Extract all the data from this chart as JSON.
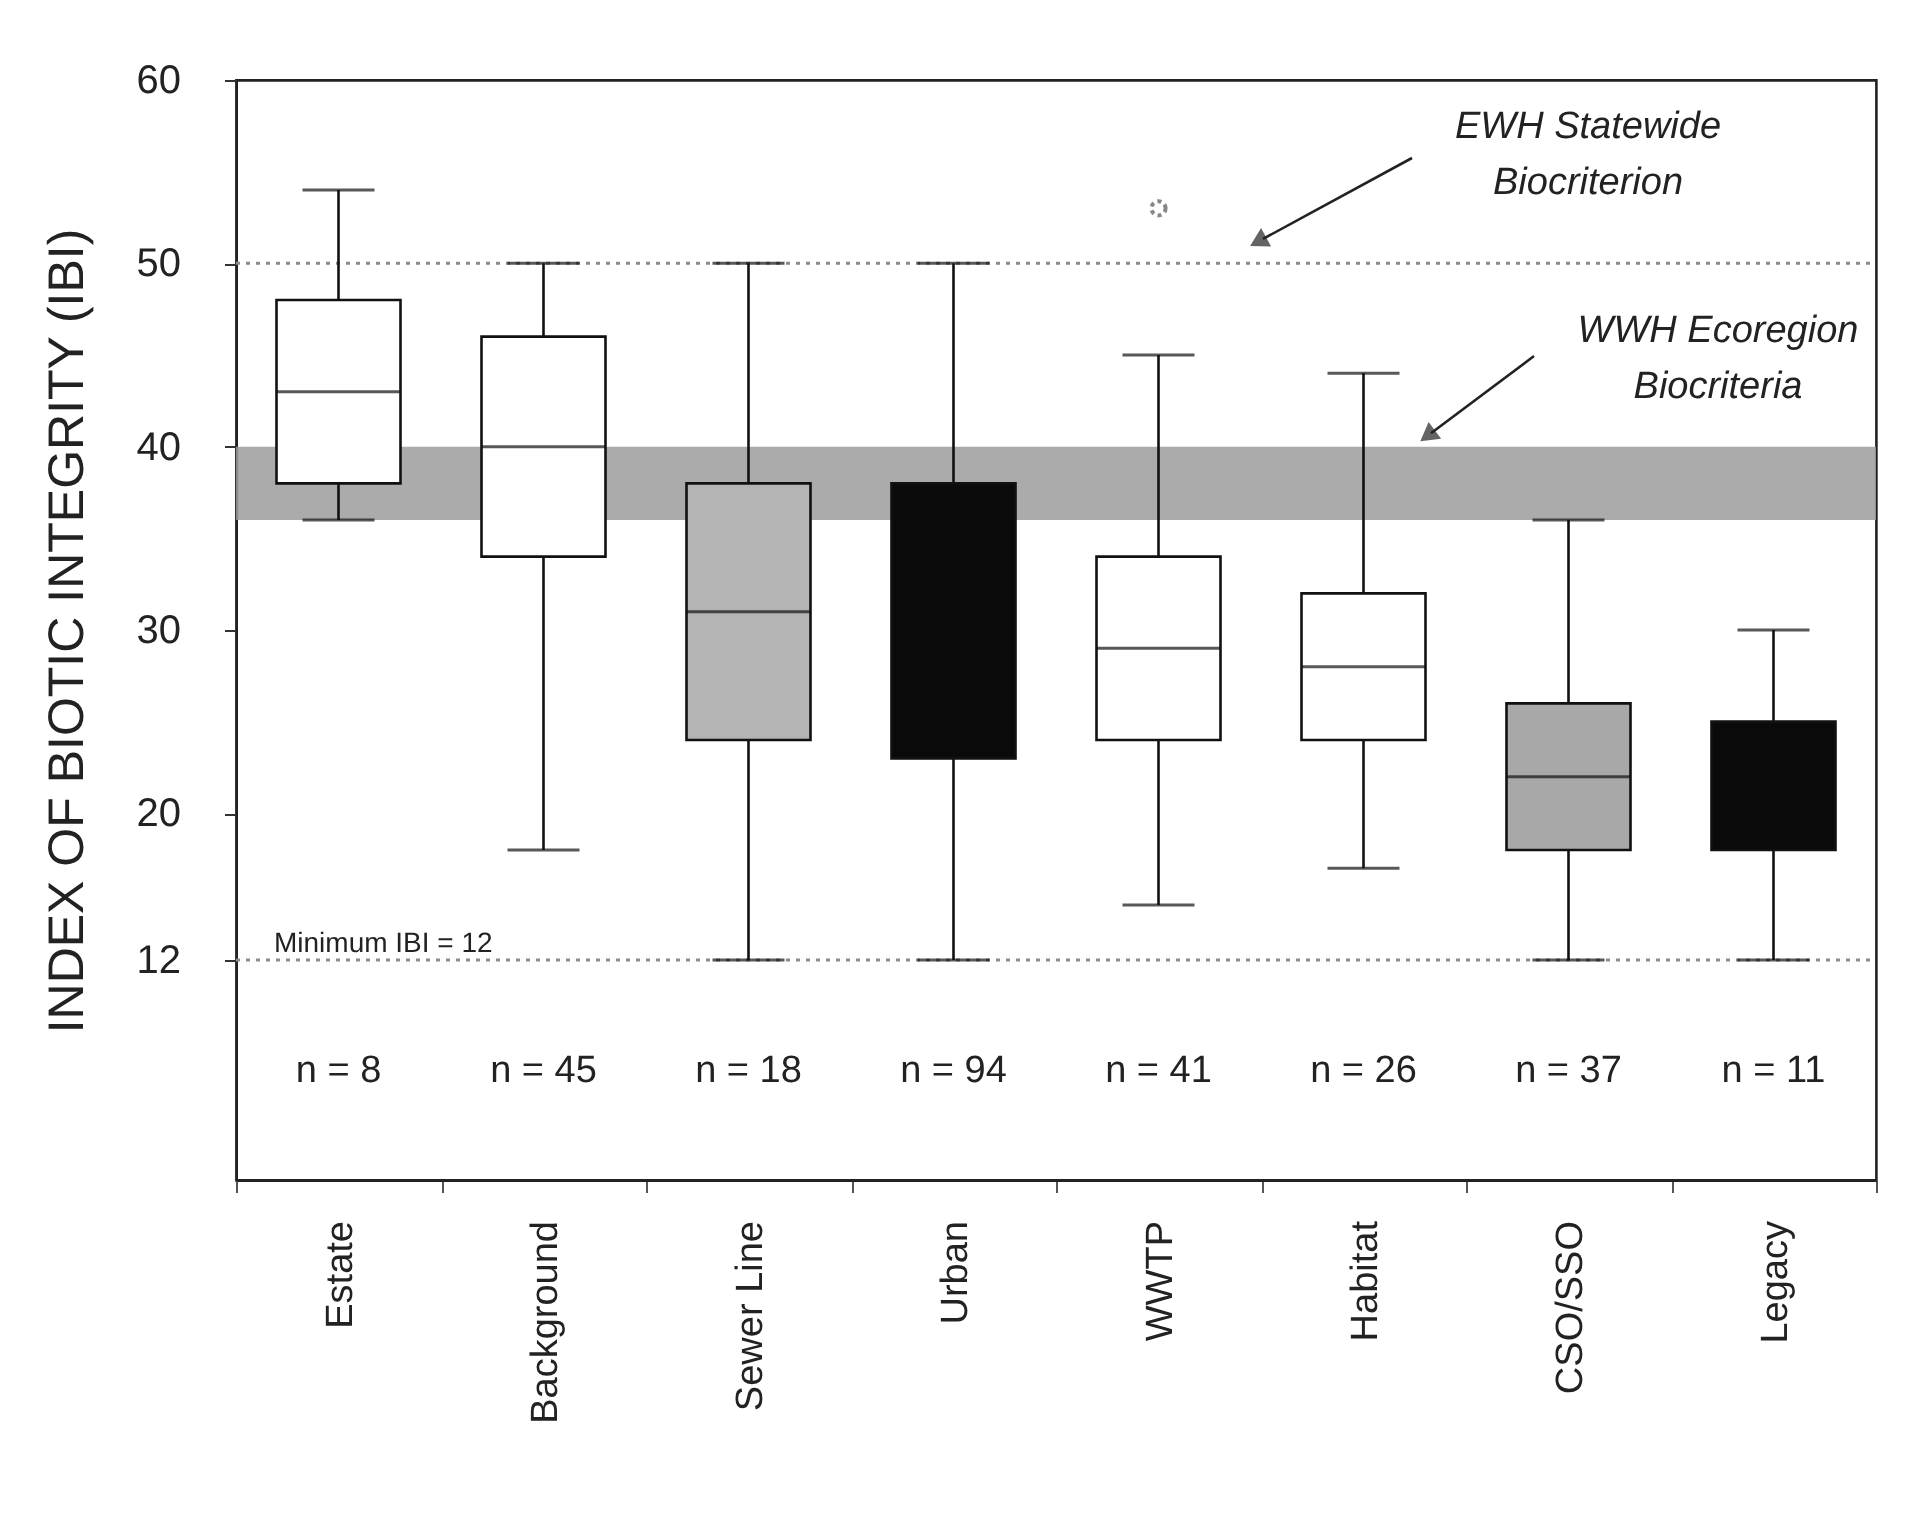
{
  "chart_data": {
    "type": "box",
    "ylabel": "INDEX OF BIOTIC INTEGRITY (IBI)",
    "categories": [
      "Estate",
      "Background",
      "Sewer  Line",
      "Urban",
      "WWTP",
      "Habitat",
      "CSO/SSO",
      "Legacy"
    ],
    "boxes": [
      {
        "low": 36,
        "q1": 38,
        "median": 43,
        "q3": 48,
        "high": 54
      },
      {
        "low": 18,
        "q1": 34,
        "median": 40,
        "q3": 46,
        "high": 50
      },
      {
        "low": 12,
        "q1": 24,
        "median": 31,
        "q3": 38,
        "high": 50
      },
      {
        "low": 12,
        "q1": 23,
        "median": null,
        "q3": 38,
        "high": 50
      },
      {
        "low": 15,
        "q1": 24,
        "median": 29,
        "q3": 34,
        "high": 45,
        "outliers": [
          53
        ]
      },
      {
        "low": 17,
        "q1": 24,
        "median": 28,
        "q3": 32,
        "high": 44
      },
      {
        "low": 12,
        "q1": 18,
        "median": 22,
        "q3": 26,
        "high": 36
      },
      {
        "low": 12,
        "q1": 18,
        "median": null,
        "q3": 25,
        "high": 30
      }
    ],
    "colors": [
      "#ffffff",
      "#ffffff",
      "#b4b4b4",
      "#0a0a0a",
      "#ffffff",
      "#ffffff",
      "#a8a8a8",
      "#0a0a0a"
    ],
    "ylim": [
      0,
      60
    ],
    "yticks": [
      12,
      20,
      30,
      40,
      50,
      60
    ],
    "ref_lines": [
      {
        "axis": "y",
        "value": 50,
        "label": "EWH Statewide Biocriterion",
        "color": "#8a8a8a",
        "line_style": "dotted"
      },
      {
        "axis": "y",
        "value": 12,
        "label": "Minimum IBI = 12",
        "color": "#8a8a8a",
        "line_style": "dotted"
      }
    ],
    "bands": [
      {
        "axis": "y",
        "from": 36,
        "to": 40,
        "label": "WWH Ecoregion Biocriteria",
        "color": "#9c9c9c"
      }
    ],
    "annotations": [
      "n = 8",
      "n = 45",
      "n = 18",
      "n = 94",
      "n = 41",
      "n = 26",
      "n = 37",
      "n = 11"
    ],
    "grid": false
  }
}
